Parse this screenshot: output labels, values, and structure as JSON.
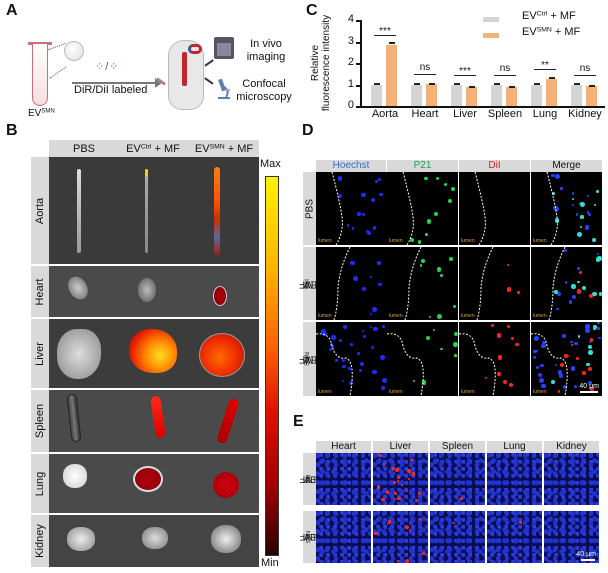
{
  "panel_a": {
    "letter": "A",
    "tube_label_base": "EV",
    "tube_label_sup": "SMN",
    "arrow_label": "DiR/DiI labeled",
    "output_1_line1": "In vivo",
    "output_1_line2": "imaging",
    "output_2_line1": "Confocal",
    "output_2_line2": "microscopy",
    "icons": [
      "test-tube-icon",
      "extracellular-vesicle-icon",
      "dye-dots-icon",
      "syringe-icon",
      "mouse-icon",
      "magnet-icon",
      "ivis-imager-icon",
      "microscope-icon"
    ]
  },
  "panel_b": {
    "letter": "B",
    "columns": [
      {
        "base": "PBS",
        "sup": "",
        "suffix": ""
      },
      {
        "base": "EV",
        "sup": "Ctrl",
        "suffix": " + MF"
      },
      {
        "base": "EV",
        "sup": "SMN",
        "suffix": " + MF"
      }
    ],
    "rows": [
      "Aorta",
      "Heart",
      "Liver",
      "Spleen",
      "Lung",
      "Kidney"
    ],
    "colorbar_max": "Max",
    "colorbar_min": "Min",
    "colorbar_colors": [
      "#fff200",
      "#ffb000",
      "#ff6000",
      "#e01000",
      "#a00000",
      "#2a0000"
    ]
  },
  "panel_c": {
    "letter": "C",
    "legend": [
      {
        "base": "EV",
        "sup": "Ctrl",
        "suffix": " + MF",
        "color": "#d4d4d4"
      },
      {
        "base": "EV",
        "sup": "SMN",
        "suffix": " + MF",
        "color": "#f3b27a"
      }
    ],
    "ylabel_line1": "Relative",
    "ylabel_line2": "fluorescence intensity",
    "yticks": [
      "0",
      "1",
      "2",
      "3",
      "4"
    ],
    "significance": [
      "***",
      "ns",
      "***",
      "ns",
      "**",
      "ns"
    ]
  },
  "chart_data": {
    "type": "bar",
    "title": "",
    "xlabel": "",
    "ylabel": "Relative fluorescence intensity",
    "categories": [
      "Aorta",
      "Heart",
      "Liver",
      "Spleen",
      "Lung",
      "Kidney"
    ],
    "series": [
      {
        "name": "EVCtrl + MF",
        "color": "#d4d4d4",
        "values": [
          1.0,
          1.0,
          1.0,
          1.0,
          1.0,
          1.0
        ],
        "errors": [
          0.03,
          0.02,
          0.03,
          0.03,
          0.02,
          0.03
        ]
      },
      {
        "name": "EVSMN + MF",
        "color": "#f3b27a",
        "values": [
          2.85,
          1.02,
          0.88,
          0.88,
          1.27,
          0.92
        ],
        "errors": [
          0.08,
          0.02,
          0.02,
          0.02,
          0.03,
          0.02
        ]
      }
    ],
    "significance": [
      "***",
      "ns",
      "***",
      "ns",
      "**",
      "ns"
    ],
    "ylim": [
      0,
      4
    ],
    "yticks": [
      0,
      1,
      2,
      3,
      4
    ],
    "grid": false,
    "legend_position": "top-right"
  },
  "panel_d": {
    "letter": "D",
    "columns": [
      {
        "label": "Hoechst",
        "color": "#2f6fd1"
      },
      {
        "label": "P21",
        "color": "#1aa34a"
      },
      {
        "label": "DiI",
        "color": "#e0202a"
      },
      {
        "label": "Merge",
        "color": "#111111"
      }
    ],
    "rows": [
      {
        "base": "PBS",
        "sup": "",
        "suffix": ""
      },
      {
        "base": "EV",
        "sup": "Ctrl",
        "suffix": " + MF"
      },
      {
        "base": "EV",
        "sup": "SMN",
        "suffix": " + MF"
      }
    ],
    "lumen_label": "lumen",
    "scale_bar": "40 μm"
  },
  "panel_e": {
    "letter": "E",
    "columns": [
      "Heart",
      "Liver",
      "Spleen",
      "Lung",
      "Kidney"
    ],
    "rows": [
      {
        "base": "EV",
        "sup": "Ctrl",
        "suffix": " + MF"
      },
      {
        "base": "EV",
        "sup": "SMN",
        "suffix": " + MF"
      }
    ],
    "scale_bar": "40 μm"
  }
}
